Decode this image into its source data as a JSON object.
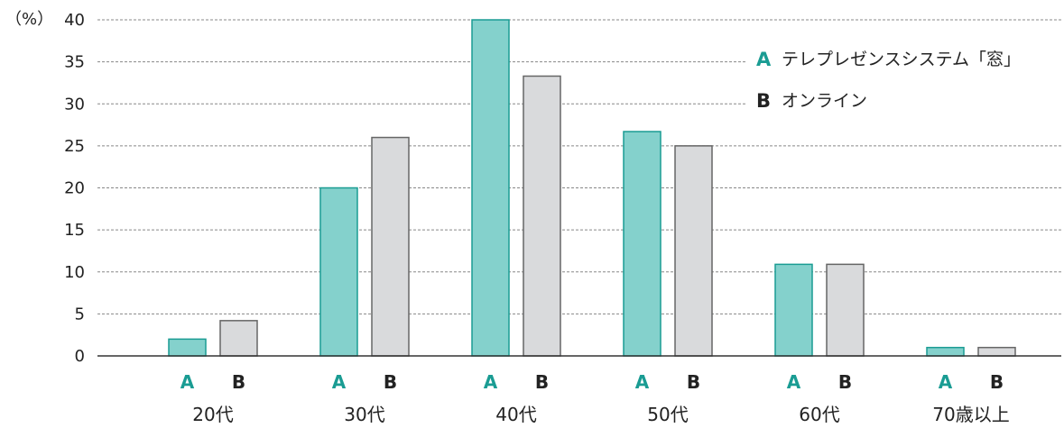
{
  "chart_data": {
    "type": "bar",
    "y_unit": "（%）",
    "ylim": [
      0,
      40
    ],
    "yticks": [
      0,
      5,
      10,
      15,
      20,
      25,
      30,
      35,
      40
    ],
    "grid": "horizontal-dashed",
    "legend_position": "top-right",
    "categories": [
      "20代",
      "30代",
      "40代",
      "50代",
      "60代",
      "70歳以上"
    ],
    "series": [
      {
        "key": "A",
        "name": "テレプレゼンスシステム「窓」",
        "color": "#84d1cc",
        "stroke": "#1a9c93",
        "key_color": "#1a9c93",
        "values": [
          2,
          20,
          40,
          26.7,
          10.9,
          1
        ]
      },
      {
        "key": "B",
        "name": "オンライン",
        "color": "#d9dadc",
        "stroke": "#666666",
        "key_color": "#222222",
        "values": [
          4.2,
          26,
          33.3,
          25,
          10.9,
          1
        ]
      }
    ]
  }
}
